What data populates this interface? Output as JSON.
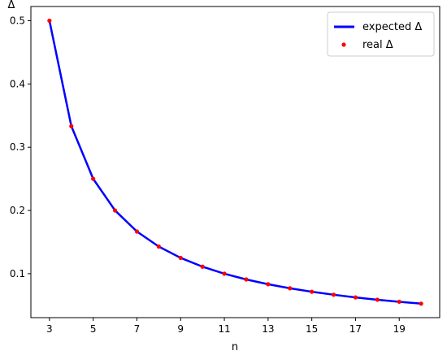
{
  "chart_data": {
    "type": "line",
    "xlabel": "n",
    "ylabel": "Δ",
    "xlim": [
      2.15,
      20.85
    ],
    "ylim": [
      0.0305,
      0.5225
    ],
    "xticks": [
      3,
      5,
      7,
      9,
      11,
      13,
      15,
      17,
      19
    ],
    "yticks": [
      0.1,
      0.2,
      0.3,
      0.4,
      0.5
    ],
    "ytick_labels": [
      "0.1",
      "0.2",
      "0.3",
      "0.4",
      "0.5"
    ],
    "grid": false,
    "legend_position": "top-right",
    "series": [
      {
        "name": "expected Δ",
        "style": "line",
        "color": "#0000ff",
        "x": [
          3,
          4,
          5,
          6,
          7,
          8,
          9,
          10,
          11,
          12,
          13,
          14,
          15,
          16,
          17,
          18,
          19,
          20
        ],
        "y": [
          0.5,
          0.3333,
          0.25,
          0.2,
          0.1667,
          0.1429,
          0.125,
          0.1111,
          0.1,
          0.0909,
          0.0833,
          0.0769,
          0.0714,
          0.0667,
          0.0625,
          0.0588,
          0.0556,
          0.0526
        ]
      },
      {
        "name": "real Δ",
        "style": "points",
        "color": "#ff0000",
        "x": [
          3,
          4,
          5,
          6,
          7,
          8,
          9,
          10,
          11,
          12,
          13,
          14,
          15,
          16,
          17,
          18,
          19,
          20
        ],
        "y": [
          0.5,
          0.3333,
          0.25,
          0.2,
          0.1667,
          0.1429,
          0.125,
          0.1111,
          0.1,
          0.0909,
          0.0833,
          0.0769,
          0.0714,
          0.0667,
          0.0625,
          0.0588,
          0.0556,
          0.0526
        ]
      }
    ]
  }
}
